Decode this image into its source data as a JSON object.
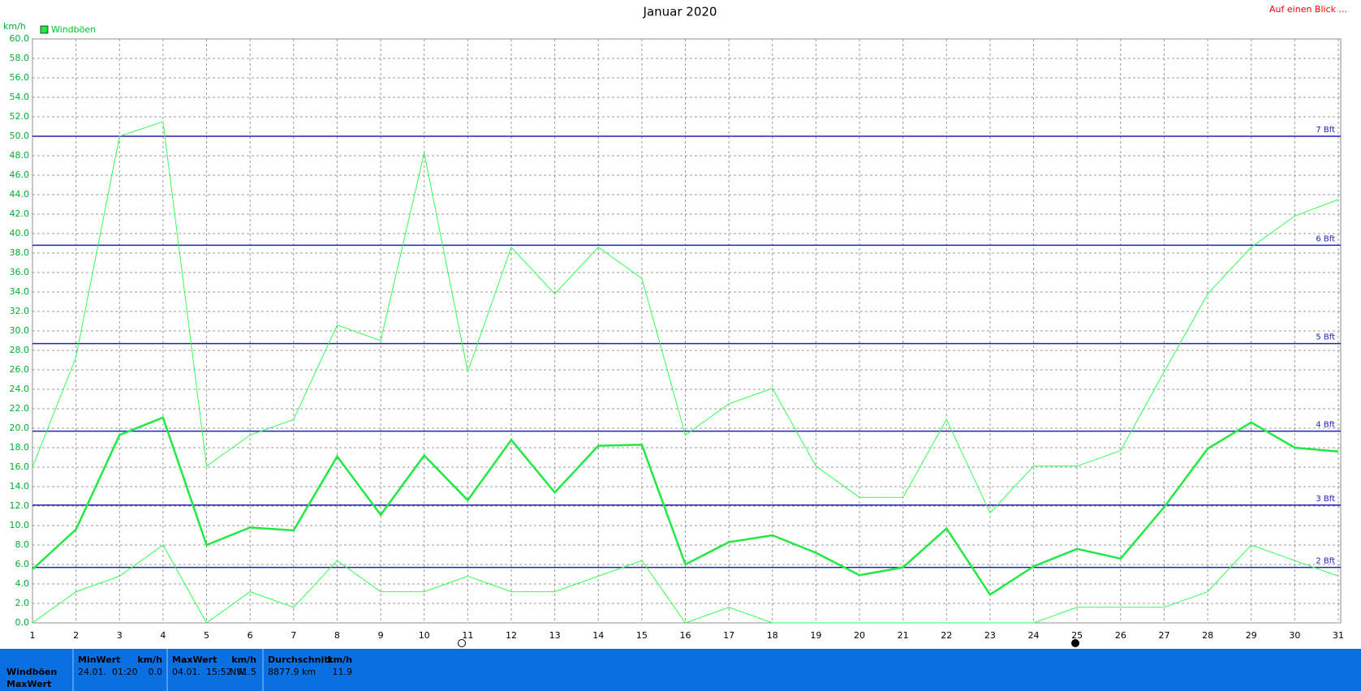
{
  "chart_data": {
    "type": "line",
    "title": "Januar 2020",
    "y_label": "km/h",
    "corner_link": "Auf einen Blick ...",
    "x": [
      1,
      2,
      3,
      4,
      5,
      6,
      7,
      8,
      9,
      10,
      11,
      12,
      13,
      14,
      15,
      16,
      17,
      18,
      19,
      20,
      21,
      22,
      23,
      24,
      25,
      26,
      27,
      28,
      29,
      30,
      31
    ],
    "xlim": [
      1,
      31
    ],
    "xticks": [
      1,
      2,
      3,
      4,
      5,
      6,
      7,
      8,
      9,
      10,
      11,
      12,
      13,
      14,
      15,
      16,
      17,
      18,
      19,
      20,
      21,
      22,
      23,
      24,
      25,
      26,
      27,
      28,
      29,
      30,
      31
    ],
    "ylim": [
      0,
      60
    ],
    "yticks": [
      {
        "value": 0,
        "label": "0.0"
      },
      {
        "value": 2,
        "label": "2.0"
      },
      {
        "value": 4,
        "label": "4.0"
      },
      {
        "value": 6,
        "label": "6.0"
      },
      {
        "value": 8,
        "label": "8.0"
      },
      {
        "value": 10,
        "label": "10.0"
      },
      {
        "value": 12,
        "label": "12.0"
      },
      {
        "value": 14,
        "label": "14.0"
      },
      {
        "value": 16,
        "label": "16.0"
      },
      {
        "value": 18,
        "label": "18.0"
      },
      {
        "value": 20,
        "label": "20.0"
      },
      {
        "value": 22,
        "label": "22.0"
      },
      {
        "value": 24,
        "label": "24.0"
      },
      {
        "value": 26,
        "label": "26.0"
      },
      {
        "value": 28,
        "label": "28.0"
      },
      {
        "value": 30,
        "label": "30.0"
      },
      {
        "value": 32,
        "label": "32.0"
      },
      {
        "value": 34,
        "label": "34.0"
      },
      {
        "value": 36,
        "label": "36.0"
      },
      {
        "value": 38,
        "label": "38.0"
      },
      {
        "value": 40,
        "label": "40.0"
      },
      {
        "value": 42,
        "label": "42.0"
      },
      {
        "value": 44,
        "label": "44.0"
      },
      {
        "value": 46,
        "label": "46.0"
      },
      {
        "value": 48,
        "label": "48.0"
      },
      {
        "value": 50,
        "label": "50.0"
      },
      {
        "value": 52,
        "label": "52.0"
      },
      {
        "value": 54,
        "label": "54.0"
      },
      {
        "value": 56,
        "label": "56.0"
      },
      {
        "value": 58,
        "label": "58.0"
      },
      {
        "value": 60,
        "label": "60.0"
      }
    ],
    "grid": true,
    "legend": "top-left",
    "series": [
      {
        "name": "Windböen",
        "color": "#22e844",
        "width": 2.5,
        "values": [
          5.5,
          9.6,
          19.3,
          21.1,
          8.0,
          9.8,
          9.5,
          17.1,
          11.1,
          17.2,
          12.6,
          18.8,
          13.4,
          18.2,
          18.3,
          6.0,
          8.3,
          9.0,
          7.2,
          4.9,
          5.7,
          9.7,
          2.9,
          5.8,
          7.6,
          6.6,
          11.9,
          17.9,
          20.6,
          18.0,
          17.6
        ]
      },
      {
        "color": "#33ff55",
        "width": 1,
        "values": [
          16.0,
          27.3,
          50.0,
          51.5,
          16.1,
          19.3,
          20.9,
          30.6,
          29.0,
          48.3,
          25.8,
          38.6,
          33.8,
          38.6,
          35.4,
          19.3,
          22.5,
          24.1,
          16.1,
          12.9,
          12.9,
          20.9,
          11.3,
          16.1,
          16.1,
          17.7,
          25.8,
          33.8,
          38.6,
          41.8,
          43.5
        ]
      },
      {
        "color": "#33ff55",
        "width": 1,
        "values": [
          0,
          3.2,
          4.8,
          8.0,
          0,
          3.2,
          1.6,
          6.4,
          3.2,
          3.2,
          4.8,
          3.2,
          3.2,
          4.8,
          6.4,
          0,
          1.6,
          0,
          0,
          0,
          0,
          0,
          0,
          0,
          1.6,
          1.6,
          1.6,
          3.2,
          8.0,
          6.4,
          4.8
        ]
      }
    ],
    "reference_lines": [
      {
        "label": "7 Bft",
        "value": 50.0
      },
      {
        "label": "6 Bft",
        "value": 38.8
      },
      {
        "label": "5 Bft",
        "value": 28.7
      },
      {
        "label": "4 Bft",
        "value": 19.7
      },
      {
        "label": "3 Bft",
        "value": 12.1
      },
      {
        "label": "2 Bft",
        "value": 5.7
      }
    ],
    "reference_color": "#2020c0"
  },
  "summary": {
    "row_labels": [
      "Windböen",
      "MaxWert"
    ],
    "columns": [
      {
        "header": "MinWert",
        "unit": "km/h",
        "when": "24.01.  01:20",
        "value": "0.0"
      },
      {
        "header": "MaxWert",
        "unit": "km/h",
        "when": "04.01.  15:52",
        "direction": "NW",
        "value": "51.5"
      },
      {
        "header": "Durchschnitt",
        "unit": "km/h",
        "when": "8877.9 km",
        "value": "11.9"
      }
    ]
  }
}
